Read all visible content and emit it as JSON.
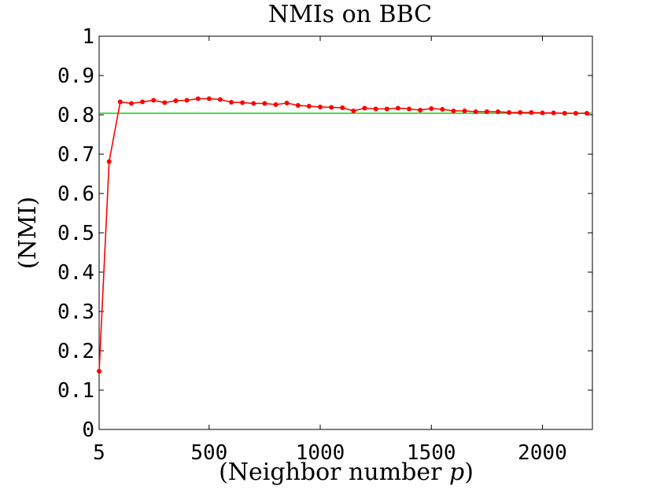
{
  "chart_data": {
    "type": "line",
    "title": "NMIs on BBC",
    "xlabel": "(Neighbor number p)",
    "ylabel": "(NMI)",
    "xlim": [
      5,
      2225
    ],
    "ylim": [
      0,
      1
    ],
    "xticks": [
      {
        "value": 5,
        "label": "5"
      },
      {
        "value": 500,
        "label": "500"
      },
      {
        "value": 1000,
        "label": "1000"
      },
      {
        "value": 1500,
        "label": "1500"
      },
      {
        "value": 2000,
        "label": "2000"
      }
    ],
    "yticks": [
      {
        "value": 0,
        "label": "0"
      },
      {
        "value": 0.1,
        "label": "0.1"
      },
      {
        "value": 0.2,
        "label": "0.2"
      },
      {
        "value": 0.3,
        "label": "0.3"
      },
      {
        "value": 0.4,
        "label": "0.4"
      },
      {
        "value": 0.5,
        "label": "0.5"
      },
      {
        "value": 0.6,
        "label": "0.6"
      },
      {
        "value": 0.7,
        "label": "0.7"
      },
      {
        "value": 0.8,
        "label": "0.8"
      },
      {
        "value": 0.9,
        "label": "0.9"
      },
      {
        "value": 1,
        "label": "1"
      }
    ],
    "grid": false,
    "series": [
      {
        "color": "#ff0000",
        "marker": "circle",
        "x": [
          5,
          50,
          100,
          150,
          200,
          250,
          300,
          350,
          400,
          450,
          500,
          550,
          600,
          650,
          700,
          750,
          800,
          850,
          900,
          950,
          1000,
          1050,
          1100,
          1150,
          1200,
          1250,
          1300,
          1350,
          1400,
          1450,
          1500,
          1550,
          1600,
          1650,
          1700,
          1750,
          1800,
          1850,
          1900,
          1950,
          2000,
          2050,
          2100,
          2150,
          2200
        ],
        "values": [
          0.148,
          0.681,
          0.833,
          0.829,
          0.833,
          0.837,
          0.831,
          0.836,
          0.837,
          0.841,
          0.841,
          0.839,
          0.832,
          0.831,
          0.829,
          0.829,
          0.826,
          0.83,
          0.824,
          0.822,
          0.82,
          0.819,
          0.818,
          0.81,
          0.817,
          0.815,
          0.815,
          0.817,
          0.815,
          0.812,
          0.816,
          0.814,
          0.81,
          0.81,
          0.808,
          0.808,
          0.808,
          0.806,
          0.806,
          0.806,
          0.805,
          0.805,
          0.804,
          0.804,
          0.804
        ]
      },
      {
        "color": "#00dd00",
        "marker": "none",
        "x": [
          5,
          2225
        ],
        "values": [
          0.804,
          0.804
        ]
      }
    ]
  }
}
